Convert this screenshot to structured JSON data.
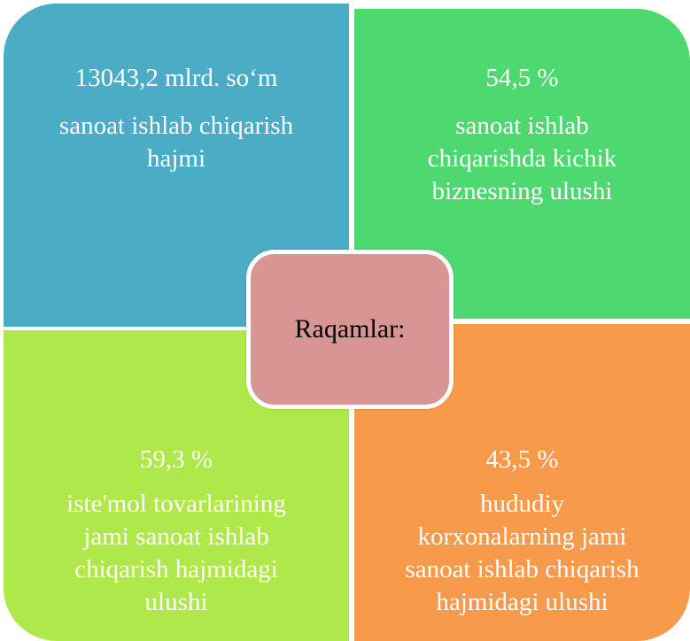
{
  "quadrants": [
    {
      "value": "13043,2 mlrd. so‘m",
      "lines": [
        "sanoat ishlab chiqarish",
        "hajmi"
      ]
    },
    {
      "value": "54,5 %",
      "lines": [
        "sanoat ishlab",
        "chiqarishda kichik",
        "biznesning ulushi"
      ]
    },
    {
      "value": "59,3 %",
      "lines": [
        "iste'mol tovarlarining",
        "jami sanoat ishlab",
        "chiqarish hajmidagi",
        "ulushi"
      ]
    },
    {
      "value": "43,5 %",
      "lines": [
        "hududiy",
        "korxonalarning jami",
        "sanoat ishlab chiqarish",
        "hajmidagi ulushi"
      ]
    }
  ],
  "center": "Raqamlar:"
}
